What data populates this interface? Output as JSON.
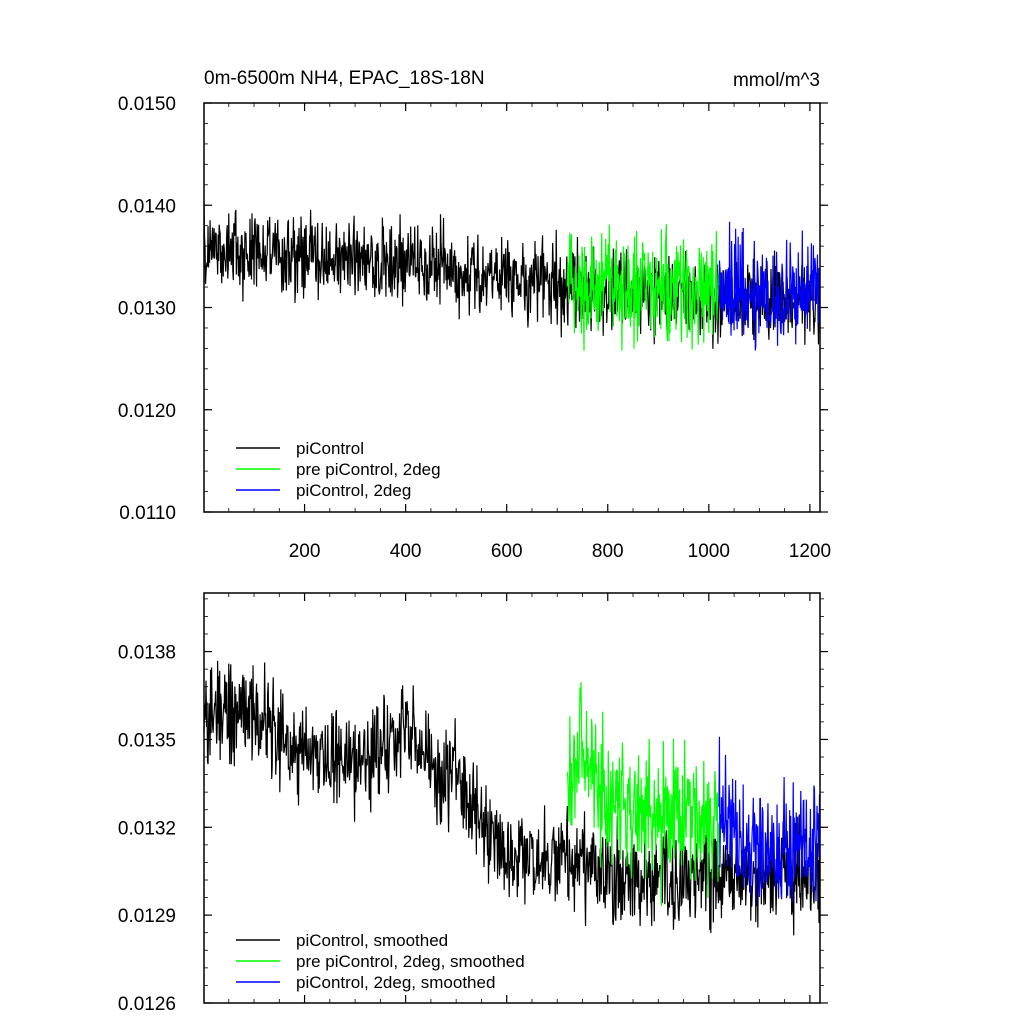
{
  "chart_data": [
    {
      "type": "line",
      "title": "0m-6500m NH4, EPAC_18S-18N",
      "units": "mmol/m^3",
      "xlim": [
        1,
        1220
      ],
      "ylim": [
        0.011,
        0.015
      ],
      "x_ticks": [
        200,
        400,
        600,
        800,
        1000,
        1200
      ],
      "y_ticks": [
        "0.0150",
        "0.0140",
        "0.0130",
        "0.0120",
        "0.0110"
      ],
      "grid": false,
      "legend": "bottom-left",
      "series": [
        {
          "name": "piControl",
          "color": "#000000",
          "x_range": [
            1,
            1220
          ],
          "trend": [
            [
              1,
              0.0136
            ],
            [
              150,
              0.0135
            ],
            [
              300,
              0.01345
            ],
            [
              450,
              0.01345
            ],
            [
              600,
              0.0133
            ],
            [
              720,
              0.0132
            ],
            [
              900,
              0.0131
            ],
            [
              1100,
              0.0131
            ],
            [
              1220,
              0.0131
            ]
          ],
          "spread": 0.0006
        },
        {
          "name": "pre piControl, 2deg",
          "color": "#00ff00",
          "x_range": [
            720,
            1020
          ],
          "trend": [
            [
              720,
              0.0133
            ],
            [
              800,
              0.0132
            ],
            [
              900,
              0.0132
            ],
            [
              1020,
              0.0132
            ]
          ],
          "spread": 0.0008
        },
        {
          "name": "piControl, 2deg",
          "color": "#0000ff",
          "x_range": [
            1020,
            1220
          ],
          "trend": [
            [
              1020,
              0.0133
            ],
            [
              1100,
              0.0131
            ],
            [
              1220,
              0.0132
            ]
          ],
          "spread": 0.0008
        }
      ]
    },
    {
      "type": "line",
      "xlim": [
        1,
        1220
      ],
      "ylim": [
        0.0126,
        0.014
      ],
      "x_ticks": [
        200,
        400,
        600,
        800,
        1000,
        1200
      ],
      "y_ticks": [
        "0.0138",
        "0.0135",
        "0.0132",
        "0.0129",
        "0.0126"
      ],
      "grid": false,
      "legend": "bottom-left",
      "series": [
        {
          "name": "piControl, smoothed",
          "color": "#000000",
          "x_range": [
            1,
            1220
          ],
          "trend": [
            [
              1,
              0.01358
            ],
            [
              30,
              0.01362
            ],
            [
              100,
              0.01358
            ],
            [
              200,
              0.01345
            ],
            [
              300,
              0.0134
            ],
            [
              350,
              0.01345
            ],
            [
              400,
              0.01355
            ],
            [
              450,
              0.0134
            ],
            [
              500,
              0.0134
            ],
            [
              550,
              0.0132
            ],
            [
              600,
              0.0131
            ],
            [
              700,
              0.0131
            ],
            [
              800,
              0.01305
            ],
            [
              900,
              0.013
            ],
            [
              1000,
              0.01305
            ],
            [
              1100,
              0.01302
            ],
            [
              1220,
              0.01305
            ]
          ],
          "spread": 0.00025
        },
        {
          "name": "pre piControl, 2deg, smoothed",
          "color": "#00ff00",
          "x_range": [
            720,
            1020
          ],
          "trend": [
            [
              720,
              0.0133
            ],
            [
              745,
              0.0135
            ],
            [
              800,
              0.0133
            ],
            [
              900,
              0.01325
            ],
            [
              1020,
              0.01322
            ]
          ],
          "spread": 0.00035
        },
        {
          "name": "piControl, 2deg, smoothed",
          "color": "#0000ff",
          "x_range": [
            1020,
            1220
          ],
          "trend": [
            [
              1020,
              0.01325
            ],
            [
              1100,
              0.0131
            ],
            [
              1220,
              0.01315
            ]
          ],
          "spread": 0.0003
        }
      ]
    }
  ]
}
